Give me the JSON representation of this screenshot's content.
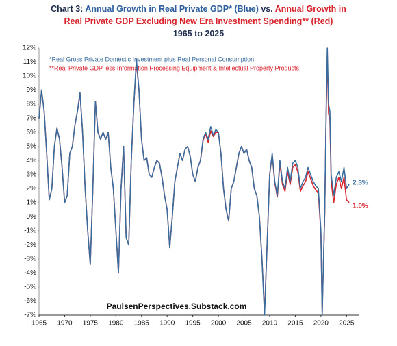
{
  "chart_data": {
    "type": "line",
    "title_lines": [
      [
        {
          "text": "Chart 3: ",
          "color": "#1f2d4d"
        },
        {
          "text": "Annual Growth in Real Private GDP* (Blue)",
          "color": "#2f5f9f"
        },
        {
          "text": " vs. ",
          "color": "#1f2d4d"
        },
        {
          "text": "Annual Growth in",
          "color": "#d9232d"
        }
      ],
      [
        {
          "text": "Real Private GDP Excluding New Era Investment Spending** (Red)",
          "color": "#d9232d"
        }
      ],
      [
        {
          "text": "1965 to 2025",
          "color": "#1f2d4d"
        }
      ]
    ],
    "notes": [
      "*Real Gross Private Domestic Investment plus Real Personal Consumption.",
      "**Real Private GDP less Information Processing Equipment & Intellectual Property Products"
    ],
    "source": "PaulsenPerspectives.Substack.com",
    "annotations": [
      "2.3%",
      "1.0%"
    ],
    "x": [
      1965,
      1965.5,
      1966,
      1966.5,
      1967,
      1967.5,
      1968,
      1968.5,
      1969,
      1969.5,
      1970,
      1970.5,
      1971,
      1971.5,
      1972,
      1972.5,
      1973,
      1973.5,
      1974,
      1974.5,
      1975,
      1975.5,
      1976,
      1976.5,
      1977,
      1977.5,
      1978,
      1978.5,
      1979,
      1979.5,
      1980,
      1980.5,
      1981,
      1981.5,
      1982,
      1982.5,
      1983,
      1983.5,
      1984,
      1984.5,
      1985,
      1985.5,
      1986,
      1986.5,
      1987,
      1987.5,
      1988,
      1988.5,
      1989,
      1989.5,
      1990,
      1990.5,
      1991,
      1991.5,
      1992,
      1992.5,
      1993,
      1993.5,
      1994,
      1994.5,
      1995,
      1995.5,
      1996,
      1996.5,
      1997,
      1997.5,
      1998,
      1998.5,
      1999,
      1999.5,
      2000,
      2000.5,
      2001,
      2001.5,
      2002,
      2002.5,
      2003,
      2003.5,
      2004,
      2004.5,
      2005,
      2005.5,
      2006,
      2006.5,
      2007,
      2007.5,
      2008,
      2008.5,
      2009,
      2009.5,
      2010,
      2010.5,
      2011,
      2011.5,
      2012,
      2012.5,
      2013,
      2013.5,
      2014,
      2014.5,
      2015,
      2015.5,
      2016,
      2016.5,
      2017,
      2017.5,
      2018,
      2018.5,
      2019,
      2019.5,
      2020,
      2020.25,
      2020.75,
      2021,
      2021.25,
      2021.5,
      2021.75,
      2022,
      2022.5,
      2023,
      2023.5,
      2024,
      2024.5,
      2025,
      2025.5
    ],
    "series": [
      {
        "color": "#3a6d9e",
        "values": [
          7.0,
          9.0,
          7.5,
          4.5,
          1.2,
          2.0,
          5.0,
          6.3,
          5.5,
          3.5,
          1.0,
          1.5,
          4.5,
          5.0,
          6.5,
          7.5,
          8.8,
          6.0,
          2.0,
          -1.0,
          -3.4,
          2.0,
          8.2,
          6.0,
          5.5,
          6.0,
          5.5,
          6.0,
          3.5,
          2.0,
          -1.0,
          -4.0,
          2.0,
          5.0,
          -1.5,
          -2.0,
          4.0,
          8.0,
          11.2,
          9.0,
          5.5,
          4.0,
          4.2,
          3.0,
          2.8,
          3.5,
          4.0,
          3.8,
          2.8,
          1.5,
          0.5,
          -2.2,
          0.0,
          2.5,
          3.5,
          4.5,
          4.0,
          4.8,
          5.0,
          4.3,
          3.0,
          2.5,
          3.5,
          4.0,
          5.5,
          6.0,
          5.5,
          6.4,
          5.8,
          6.2,
          6.0,
          4.5,
          2.0,
          0.5,
          -0.3,
          2.0,
          2.5,
          3.5,
          4.5,
          5.0,
          4.5,
          4.8,
          4.0,
          3.5,
          2.0,
          1.5,
          0.0,
          -3.0,
          -7.0,
          -2.0,
          3.0,
          4.5,
          2.5,
          1.5,
          4.0,
          2.5,
          2.0,
          3.5,
          2.5,
          3.8,
          4.0,
          3.5,
          2.0,
          2.5,
          2.8,
          3.5,
          3.0,
          2.5,
          2.2,
          2.0,
          -1.0,
          -7.0,
          0.5,
          7.0,
          12.0,
          8.0,
          7.5,
          3.0,
          1.5,
          2.8,
          3.2,
          2.5,
          3.5,
          2.0,
          2.3
        ]
      },
      {
        "color": "#d9232d",
        "values": [
          7.0,
          9.0,
          7.5,
          4.5,
          1.2,
          2.0,
          5.0,
          6.3,
          5.5,
          3.5,
          1.0,
          1.5,
          4.5,
          5.0,
          6.5,
          7.5,
          8.8,
          6.0,
          2.0,
          -1.0,
          -3.4,
          2.0,
          8.2,
          6.0,
          5.5,
          6.0,
          5.5,
          6.0,
          3.5,
          2.0,
          -1.0,
          -4.0,
          2.0,
          5.0,
          -1.5,
          -2.0,
          4.0,
          8.0,
          11.0,
          9.0,
          5.5,
          4.0,
          4.2,
          3.0,
          2.8,
          3.5,
          4.0,
          3.8,
          2.8,
          1.5,
          0.5,
          -2.2,
          0.0,
          2.5,
          3.5,
          4.5,
          4.0,
          4.8,
          5.0,
          4.3,
          3.0,
          2.5,
          3.5,
          4.0,
          5.4,
          5.9,
          5.3,
          6.1,
          5.7,
          6.0,
          6.0,
          4.5,
          2.0,
          0.5,
          -0.3,
          2.0,
          2.5,
          3.5,
          4.5,
          5.0,
          4.5,
          4.8,
          4.0,
          3.5,
          2.0,
          1.5,
          0.0,
          -3.0,
          -6.8,
          -2.0,
          3.0,
          4.4,
          2.4,
          1.4,
          3.8,
          2.3,
          1.8,
          3.2,
          2.3,
          3.5,
          3.7,
          3.2,
          1.8,
          2.2,
          2.5,
          3.2,
          2.7,
          2.2,
          1.9,
          1.7,
          -1.2,
          -6.8,
          0.3,
          6.8,
          11.5,
          7.3,
          7.0,
          2.5,
          1.0,
          2.3,
          2.8,
          2.0,
          2.8,
          1.2,
          1.0
        ]
      }
    ],
    "xlim": [
      1965,
      2027.5
    ],
    "xticks": [
      1965,
      1970,
      1975,
      1980,
      1985,
      1990,
      1995,
      2000,
      2005,
      2010,
      2015,
      2020,
      2025
    ],
    "ylim": [
      -7,
      12
    ],
    "yticks": [
      {
        "value": -7,
        "label": "-7%"
      },
      {
        "value": -6,
        "label": "-6%"
      },
      {
        "value": -5,
        "label": "-5%"
      },
      {
        "value": -4,
        "label": "-4%"
      },
      {
        "value": -3,
        "label": "-3%"
      },
      {
        "value": -2,
        "label": "-2%"
      },
      {
        "value": -1,
        "label": "-1%"
      },
      {
        "value": 0,
        "label": "0%"
      },
      {
        "value": 1,
        "label": "1%"
      },
      {
        "value": 2,
        "label": "2%"
      },
      {
        "value": 3,
        "label": "3%"
      },
      {
        "value": 4,
        "label": "4%"
      },
      {
        "value": 5,
        "label": "5%"
      },
      {
        "value": 6,
        "label": "6%"
      },
      {
        "value": 7,
        "label": "7%"
      },
      {
        "value": 8,
        "label": "8%"
      },
      {
        "value": 9,
        "label": "9%"
      },
      {
        "value": 10,
        "label": "10%"
      },
      {
        "value": 11,
        "label": "11%"
      },
      {
        "value": 12,
        "label": "12%"
      }
    ],
    "grid": false
  }
}
